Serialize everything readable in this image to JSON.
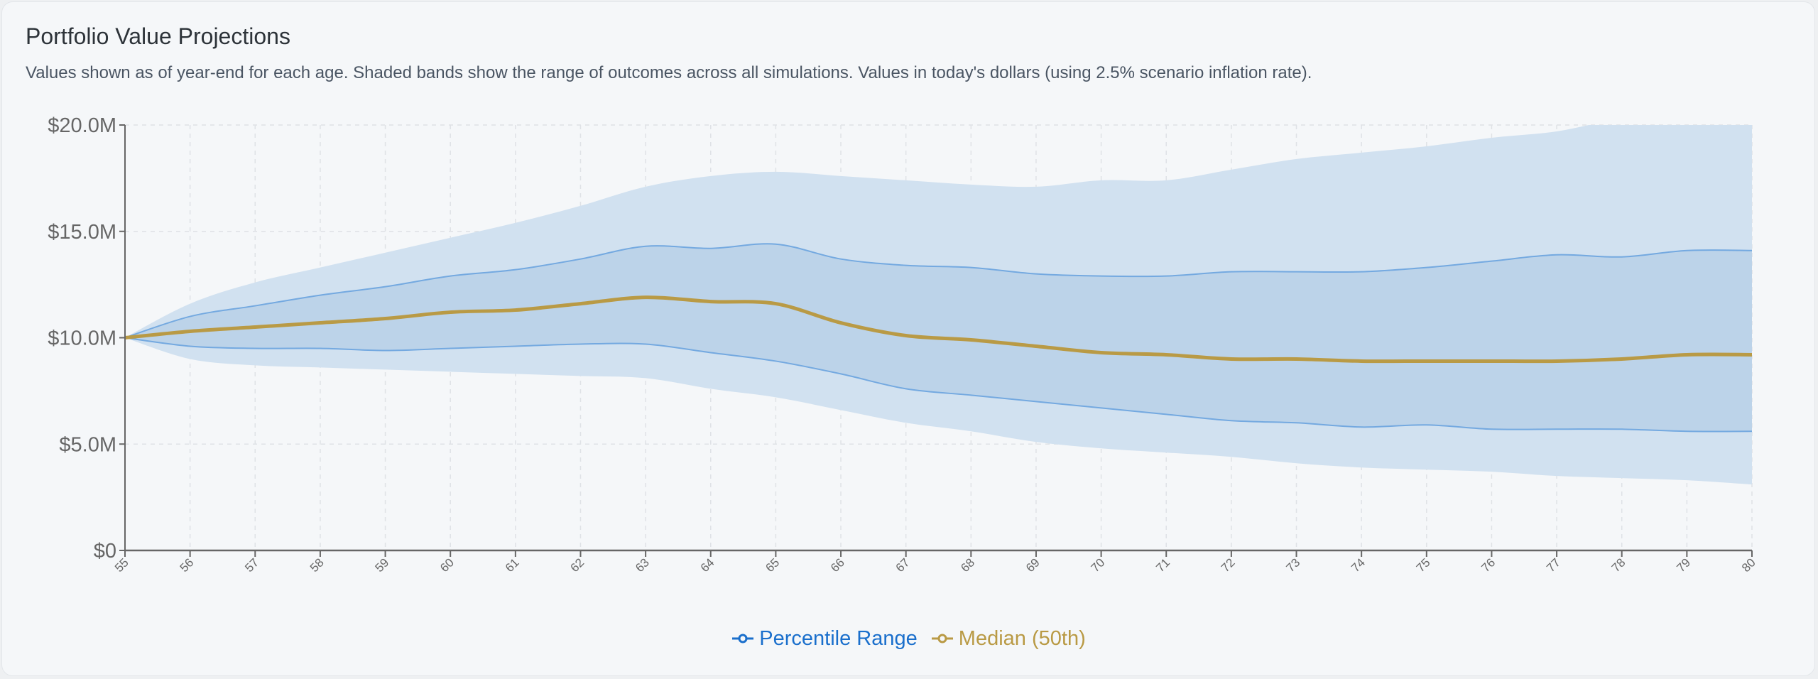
{
  "title": "Portfolio Value Projections",
  "subtitle": "Values shown as of year-end for each age. Shaded bands show the range of outcomes across all simulations. Values in today's dollars (using 2.5% scenario inflation rate).",
  "chart_data": {
    "type": "area",
    "x": [
      55,
      56,
      57,
      58,
      59,
      60,
      61,
      62,
      63,
      64,
      65,
      66,
      67,
      68,
      69,
      70,
      71,
      72,
      73,
      74,
      75,
      76,
      77,
      78,
      79,
      80
    ],
    "xlim": [
      55,
      80
    ],
    "ylim": [
      0,
      20
    ],
    "y_unit": "$M",
    "y_ticks": [
      "$0",
      "$5.0M",
      "$10.0M",
      "$15.0M",
      "$20.0M"
    ],
    "y_tick_values": [
      0,
      5,
      10,
      15,
      20
    ],
    "grid": true,
    "legend_position": "bottom-center",
    "bands": [
      {
        "role": "outer",
        "color": "#d1e1f0",
        "upper": [
          10,
          11.6,
          12.6,
          13.3,
          14.0,
          14.7,
          15.4,
          16.2,
          17.1,
          17.6,
          17.8,
          17.6,
          17.4,
          17.2,
          17.1,
          17.4,
          17.4,
          17.9,
          18.4,
          18.7,
          19.0,
          19.4,
          19.7,
          20.3,
          20.5,
          20.6
        ],
        "lower": [
          10,
          9.0,
          8.7,
          8.6,
          8.5,
          8.4,
          8.3,
          8.2,
          8.1,
          7.6,
          7.2,
          6.6,
          6.0,
          5.6,
          5.1,
          4.8,
          4.6,
          4.4,
          4.1,
          3.9,
          3.8,
          3.7,
          3.5,
          3.4,
          3.3,
          3.1
        ]
      },
      {
        "role": "inner",
        "color": "#bcd3e9",
        "line_color": "#74a9e0",
        "upper": [
          10,
          11.0,
          11.5,
          12.0,
          12.4,
          12.9,
          13.2,
          13.7,
          14.3,
          14.2,
          14.4,
          13.7,
          13.4,
          13.3,
          13.0,
          12.9,
          12.9,
          13.1,
          13.1,
          13.1,
          13.3,
          13.6,
          13.9,
          13.8,
          14.1,
          14.1
        ],
        "lower": [
          10,
          9.6,
          9.5,
          9.5,
          9.4,
          9.5,
          9.6,
          9.7,
          9.7,
          9.3,
          8.9,
          8.3,
          7.6,
          7.3,
          7.0,
          6.7,
          6.4,
          6.1,
          6.0,
          5.8,
          5.9,
          5.7,
          5.7,
          5.7,
          5.6,
          5.6
        ]
      }
    ],
    "series": [
      {
        "name": "Median (50th)",
        "color": "#b99a45",
        "values": [
          10,
          10.3,
          10.5,
          10.7,
          10.9,
          11.2,
          11.3,
          11.6,
          11.9,
          11.7,
          11.6,
          10.7,
          10.1,
          9.9,
          9.6,
          9.3,
          9.2,
          9.0,
          9.0,
          8.9,
          8.9,
          8.9,
          8.9,
          9.0,
          9.2,
          9.2
        ]
      }
    ],
    "legend": [
      {
        "label": "Percentile Range",
        "color": "#1a6fcc"
      },
      {
        "label": "Median (50th)",
        "color": "#b99a45"
      }
    ]
  }
}
